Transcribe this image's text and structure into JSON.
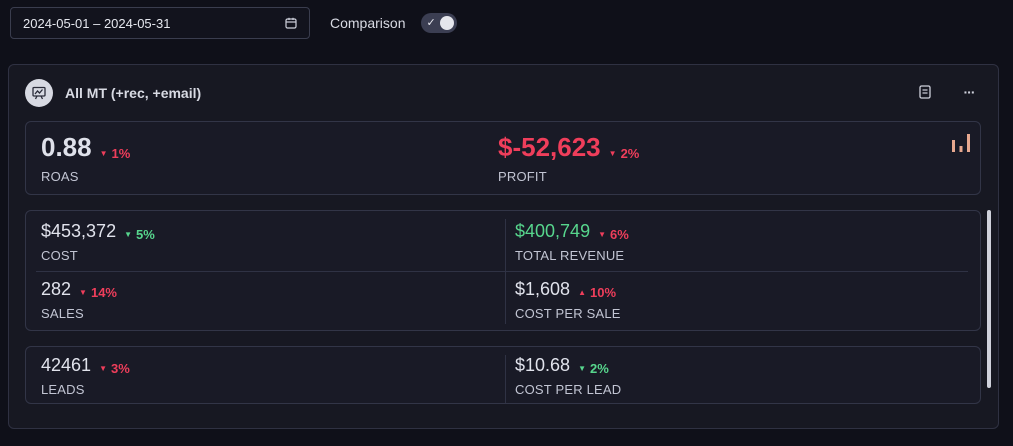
{
  "date_range": {
    "value": "2024-05-01 – 2024-05-31",
    "icon": "calendar-icon"
  },
  "comparison": {
    "label": "Comparison",
    "enabled": true,
    "check_glyph": "✓"
  },
  "panel": {
    "title": "All MT (+rec, +email)",
    "icon": "presentation-chart-icon",
    "actions": {
      "notes_icon": "document-icon",
      "more_icon": "more-horizontal-icon",
      "more_glyph": "···"
    }
  },
  "top_metrics": [
    {
      "value": "0.88",
      "delta": "1%",
      "direction": "down",
      "label": "ROAS"
    },
    {
      "value": "$-52,623",
      "delta": "2%",
      "direction": "down",
      "label": "PROFIT"
    }
  ],
  "mid_metrics": [
    {
      "value": "$453,372",
      "delta": "5%",
      "direction": "down",
      "label": "COST"
    },
    {
      "value": "$400,749",
      "delta": "6%",
      "direction": "down",
      "label": "TOTAL REVENUE"
    },
    {
      "value": "282",
      "delta": "14%",
      "direction": "down",
      "label": "SALES"
    },
    {
      "value": "$1,608",
      "delta": "10%",
      "direction": "up",
      "label": "COST PER SALE"
    }
  ],
  "bottom_metrics": [
    {
      "value": "42461",
      "delta": "3%",
      "direction": "down",
      "label": "LEADS"
    },
    {
      "value": "$10.68",
      "delta": "2%",
      "direction": "down",
      "label": "COST PER LEAD"
    }
  ],
  "glyphs": {
    "down": "▼",
    "up": "▲"
  },
  "colors": {
    "negative": "#ef3e5b",
    "positive": "#57d68d",
    "accent_chart": "#e7a88f"
  }
}
